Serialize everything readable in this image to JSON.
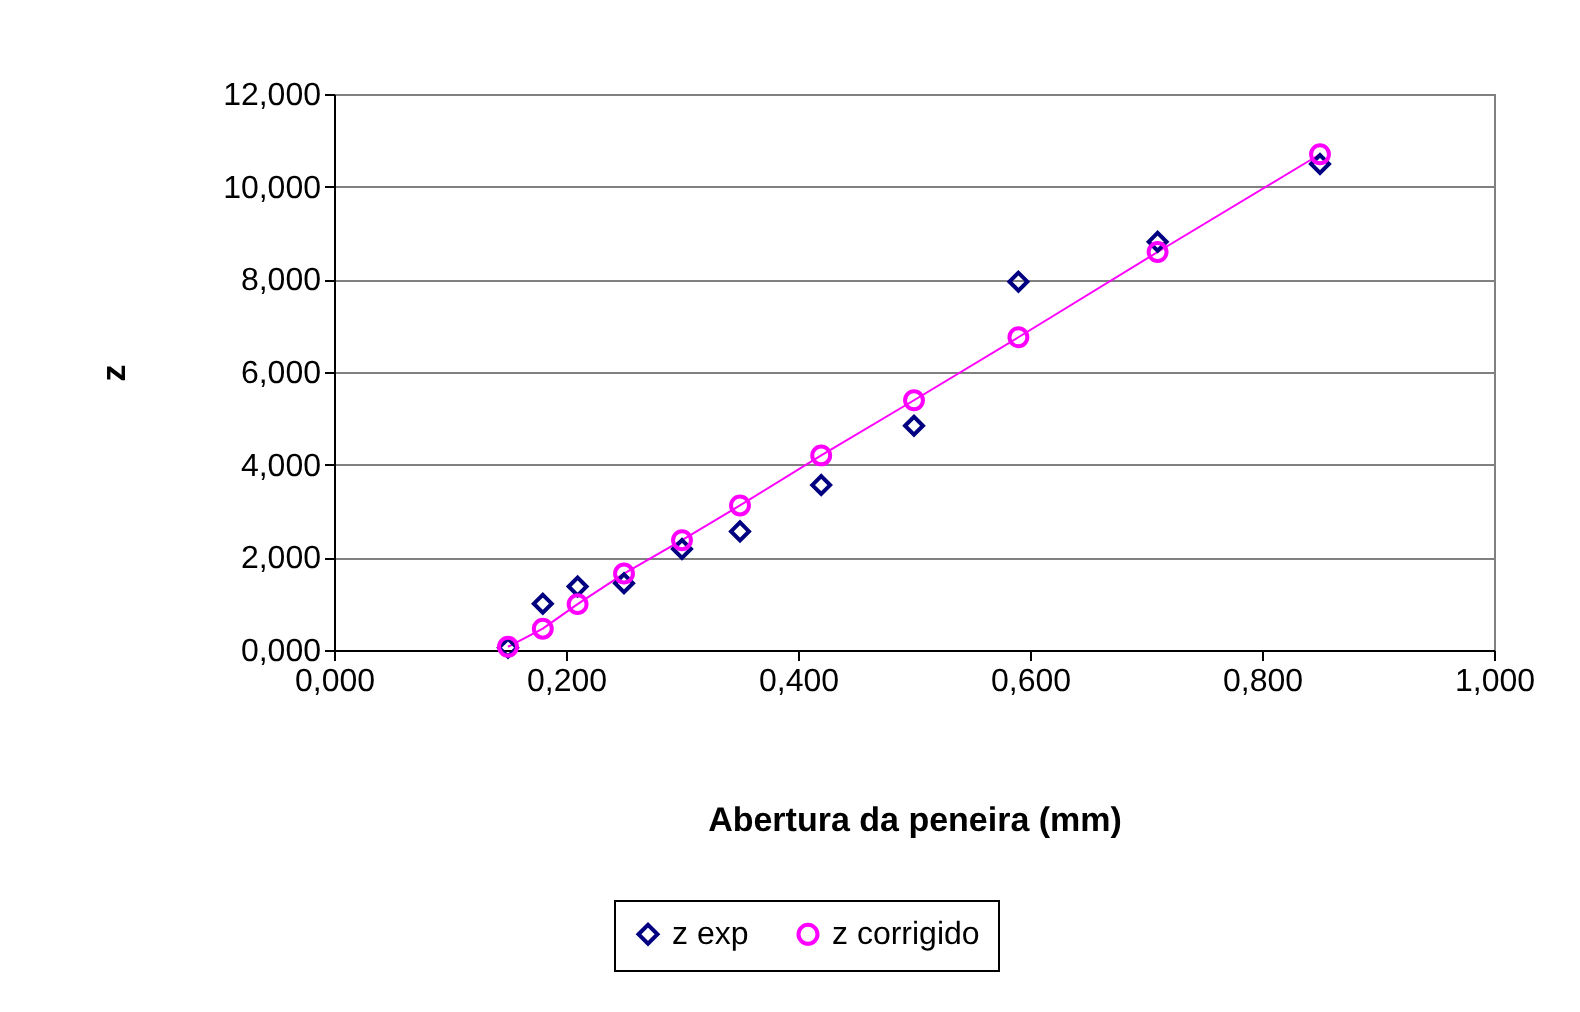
{
  "chart_data": {
    "type": "scatter",
    "xlabel": "Abertura da peneira (mm)",
    "ylabel": "z",
    "x": [
      0.15,
      0.18,
      0.21,
      0.25,
      0.3,
      0.35,
      0.42,
      0.5,
      0.59,
      0.71,
      0.85
    ],
    "series": [
      {
        "name": "z exp",
        "type": "scatter",
        "marker": "diamond",
        "color": "#000080",
        "values": [
          0.05,
          1.0,
          1.37,
          1.44,
          2.18,
          2.56,
          3.56,
          4.84,
          7.95,
          8.81,
          10.49
        ]
      },
      {
        "name": "z corrigido",
        "type": "line",
        "marker": "circle",
        "color": "#ff00ff",
        "values": [
          0.07,
          0.46,
          0.99,
          1.65,
          2.37,
          3.12,
          4.2,
          5.39,
          6.75,
          8.59,
          10.7
        ]
      }
    ],
    "xlim": [
      0,
      1
    ],
    "xticks": [
      {
        "value": 0,
        "label": "0,000"
      },
      {
        "value": 0.2,
        "label": "0,200"
      },
      {
        "value": 0.4,
        "label": "0,400"
      },
      {
        "value": 0.6,
        "label": "0,600"
      },
      {
        "value": 0.8,
        "label": "0,800"
      },
      {
        "value": 1,
        "label": "1,000"
      }
    ],
    "ylim": [
      0,
      12
    ],
    "yticks": [
      {
        "value": 0,
        "label": "0,000"
      },
      {
        "value": 2,
        "label": "2,000"
      },
      {
        "value": 4,
        "label": "4,000"
      },
      {
        "value": 6,
        "label": "6,000"
      },
      {
        "value": 8,
        "label": "8,000"
      },
      {
        "value": 10,
        "label": "10,000"
      },
      {
        "value": 12,
        "label": "12,000"
      }
    ],
    "grid": "y",
    "legend": "bottom"
  }
}
